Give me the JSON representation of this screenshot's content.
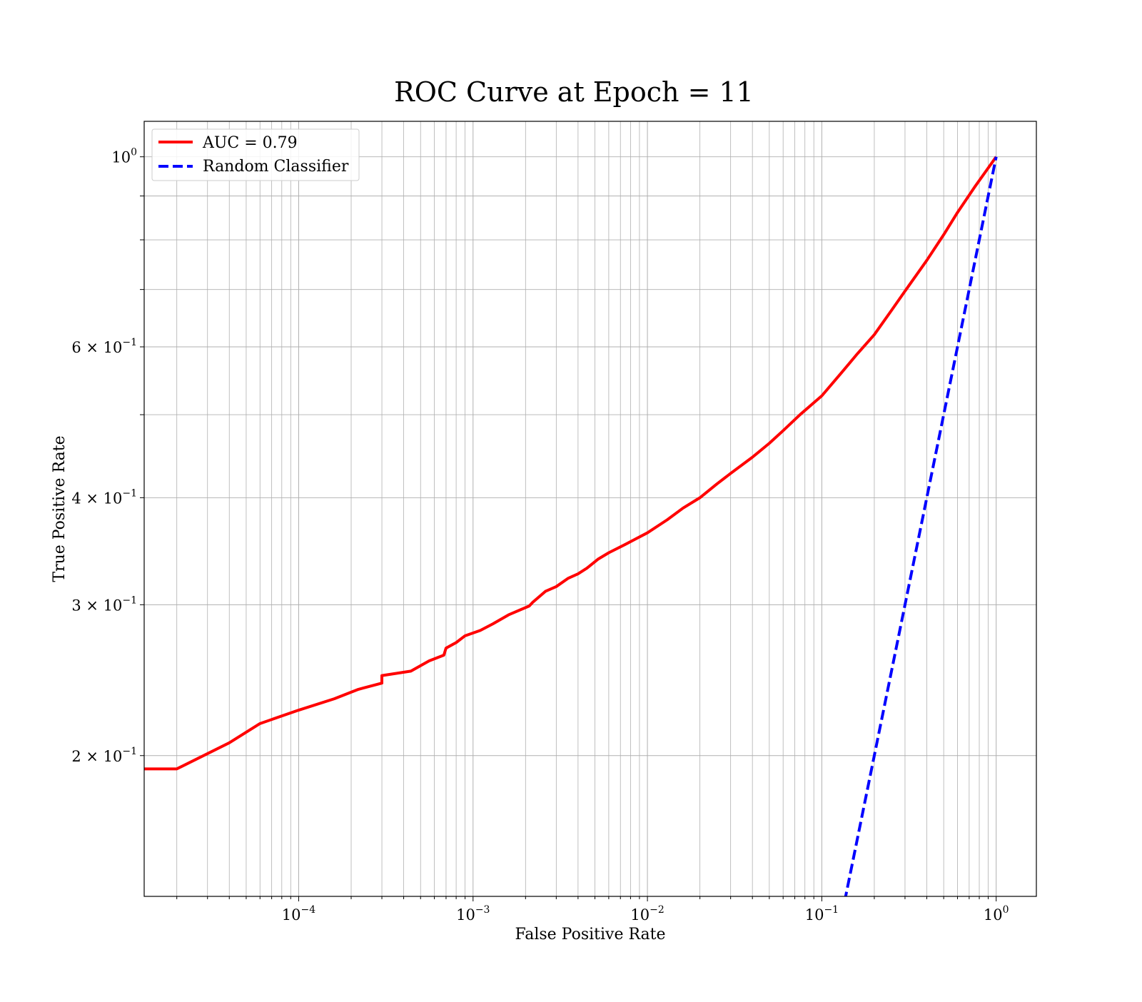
{
  "chart_data": {
    "type": "line",
    "title": "ROC Curve at Epoch = 11",
    "xlabel": "False Positive Rate",
    "ylabel": "True Positive Rate",
    "x_scale": "log",
    "y_scale": "log",
    "xlim": [
      1.3e-05,
      1.7
    ],
    "ylim": [
      0.137,
      1.1
    ],
    "grid": true,
    "grid_minor": true,
    "legend_position": "upper-left",
    "x_ticks": [
      {
        "value": 0.0001,
        "base": "10",
        "exp": "−4"
      },
      {
        "value": 0.001,
        "base": "10",
        "exp": "−3"
      },
      {
        "value": 0.01,
        "base": "10",
        "exp": "−2"
      },
      {
        "value": 0.1,
        "base": "10",
        "exp": "−1"
      },
      {
        "value": 1,
        "base": "10",
        "exp": "0"
      }
    ],
    "y_ticks": [
      {
        "value": 0.2,
        "base": "2 × 10",
        "exp": "−1"
      },
      {
        "value": 0.3,
        "base": "3 × 10",
        "exp": "−1"
      },
      {
        "value": 0.4,
        "base": "4 × 10",
        "exp": "−1"
      },
      {
        "value": 0.6,
        "base": "6 × 10",
        "exp": "−1"
      },
      {
        "value": 1,
        "base": "10",
        "exp": "0"
      }
    ],
    "series": [
      {
        "name": "AUC = 0.79",
        "color": "#ff0000",
        "style": "solid",
        "x": [
          1e-07,
          2e-05,
          4e-05,
          6e-05,
          0.0001,
          0.00016,
          0.00022,
          0.0003,
          0.0003,
          0.00044,
          0.00056,
          0.00068,
          0.0007,
          0.0008,
          0.0009,
          0.0011,
          0.0013,
          0.0016,
          0.0021,
          0.0022,
          0.0026,
          0.003,
          0.0035,
          0.004,
          0.0045,
          0.0052,
          0.006,
          0.0075,
          0.01,
          0.013,
          0.016,
          0.02,
          0.025,
          0.03,
          0.04,
          0.05,
          0.06,
          0.075,
          0.1,
          0.13,
          0.16,
          0.2,
          0.25,
          0.3,
          0.4,
          0.5,
          0.6,
          0.75,
          1.0
        ],
        "y": [
          0.193,
          0.193,
          0.207,
          0.218,
          0.226,
          0.233,
          0.239,
          0.243,
          0.248,
          0.251,
          0.258,
          0.262,
          0.267,
          0.271,
          0.276,
          0.28,
          0.285,
          0.292,
          0.299,
          0.302,
          0.311,
          0.315,
          0.322,
          0.326,
          0.331,
          0.339,
          0.345,
          0.353,
          0.364,
          0.377,
          0.389,
          0.4,
          0.415,
          0.427,
          0.446,
          0.463,
          0.479,
          0.5,
          0.526,
          0.56,
          0.589,
          0.62,
          0.661,
          0.697,
          0.757,
          0.811,
          0.861,
          0.921,
          1.0
        ]
      },
      {
        "name": "Random Classifier",
        "color": "#0000ff",
        "style": "dashed",
        "x": [
          0.1,
          0.2,
          0.3,
          0.4,
          0.5,
          0.6,
          0.7,
          0.8,
          0.9,
          1.0
        ],
        "y": [
          0.1,
          0.2,
          0.3,
          0.4,
          0.5,
          0.6,
          0.7,
          0.8,
          0.9,
          1.0
        ]
      }
    ]
  }
}
